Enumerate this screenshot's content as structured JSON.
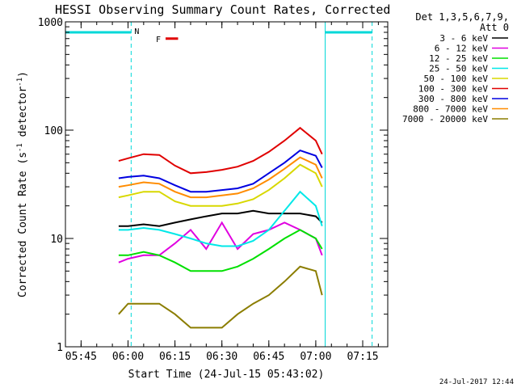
{
  "chart_data": {
    "type": "line",
    "title": "HESSI Observing Summary Count Rates, Corrected",
    "xlabel": "Start Time (24-Jul-15 05:43:02)",
    "ylabel_main": "Corrected Count Rate (s",
    "ylabel_sup1": "-1",
    "ylabel_mid": " detector",
    "ylabel_sup2": "-1",
    "ylabel_end": ")",
    "footer_date": "24-Jul-2017 12:44",
    "y_scale": "log",
    "ylim": [
      1,
      1000
    ],
    "xlim": [
      "05:40",
      "07:23"
    ],
    "x_ticks": [
      "05:45",
      "06:00",
      "06:15",
      "06:30",
      "06:45",
      "07:00",
      "07:15"
    ],
    "y_ticks": [
      "1",
      "10",
      "100",
      "1000"
    ],
    "legend_header": [
      "Det 1,3,5,6,7,9,",
      "Att 0"
    ],
    "legend_position": "right",
    "night_bars": [
      {
        "from": "05:40",
        "to": "06:01",
        "y": 800,
        "marker": "N"
      },
      {
        "from": "07:03",
        "to": "07:18",
        "y": 800,
        "marker": ""
      }
    ],
    "flare_bar": {
      "from": "06:12",
      "to": "06:16",
      "y": 700,
      "marker": "F",
      "color": "#e00000"
    },
    "vlines_solid": [
      "05:40",
      "07:03"
    ],
    "vlines_dashed": [
      "06:01",
      "07:18"
    ],
    "series": [
      {
        "name": "3 - 6 keV",
        "color": "#000000",
        "x": [
          "05:57",
          "06:00",
          "06:05",
          "06:10",
          "06:15",
          "06:20",
          "06:25",
          "06:30",
          "06:35",
          "06:40",
          "06:45",
          "06:50",
          "06:55",
          "07:00",
          "07:02"
        ],
        "y": [
          13,
          13,
          13.5,
          13,
          14,
          15,
          16,
          17,
          17,
          18,
          17,
          17,
          17,
          16,
          14
        ]
      },
      {
        "name": "6 - 12 keV",
        "color": "#e000e0",
        "x": [
          "05:57",
          "06:00",
          "06:05",
          "06:10",
          "06:15",
          "06:20",
          "06:25",
          "06:30",
          "06:35",
          "06:40",
          "06:45",
          "06:50",
          "06:55",
          "07:00",
          "07:02"
        ],
        "y": [
          6,
          6.5,
          7,
          7,
          9,
          12,
          8,
          14,
          8,
          11,
          12,
          14,
          12,
          10,
          7
        ]
      },
      {
        "name": "12 - 25 keV",
        "color": "#00e000",
        "x": [
          "05:57",
          "06:00",
          "06:05",
          "06:10",
          "06:15",
          "06:20",
          "06:25",
          "06:30",
          "06:35",
          "06:40",
          "06:45",
          "06:50",
          "06:55",
          "07:00",
          "07:02"
        ],
        "y": [
          7,
          7,
          7.5,
          7,
          6,
          5,
          5,
          5,
          5.5,
          6.5,
          8,
          10,
          12,
          10,
          8
        ]
      },
      {
        "name": "25 - 50 keV",
        "color": "#00e8e8",
        "x": [
          "05:57",
          "06:00",
          "06:05",
          "06:10",
          "06:15",
          "06:20",
          "06:25",
          "06:30",
          "06:35",
          "06:40",
          "06:45",
          "06:50",
          "06:55",
          "07:00",
          "07:02"
        ],
        "y": [
          12,
          12,
          12.5,
          12,
          11,
          10,
          9,
          8.5,
          8.5,
          9.5,
          12,
          18,
          27,
          20,
          13
        ]
      },
      {
        "name": "50 - 100 keV",
        "color": "#d8d800",
        "x": [
          "05:57",
          "06:00",
          "06:05",
          "06:10",
          "06:15",
          "06:20",
          "06:25",
          "06:30",
          "06:35",
          "06:40",
          "06:45",
          "06:50",
          "06:55",
          "07:00",
          "07:02"
        ],
        "y": [
          24,
          25,
          27,
          27,
          22,
          20,
          20,
          20,
          21,
          23,
          28,
          36,
          48,
          40,
          30
        ]
      },
      {
        "name": "100 - 300 keV",
        "color": "#e00000",
        "x": [
          "05:57",
          "06:00",
          "06:05",
          "06:10",
          "06:15",
          "06:20",
          "06:25",
          "06:30",
          "06:35",
          "06:40",
          "06:45",
          "06:50",
          "06:55",
          "07:00",
          "07:02"
        ],
        "y": [
          52,
          55,
          60,
          59,
          47,
          40,
          41,
          43,
          46,
          52,
          63,
          80,
          105,
          80,
          60
        ]
      },
      {
        "name": "300 - 800 keV",
        "color": "#0000e0",
        "x": [
          "05:57",
          "06:00",
          "06:05",
          "06:10",
          "06:15",
          "06:20",
          "06:25",
          "06:30",
          "06:35",
          "06:40",
          "06:45",
          "06:50",
          "06:55",
          "07:00",
          "07:02"
        ],
        "y": [
          36,
          37,
          38,
          36,
          31,
          27,
          27,
          28,
          29,
          32,
          40,
          50,
          65,
          58,
          45
        ]
      },
      {
        "name": "800 - 7000 keV",
        "color": "#ff8c00",
        "x": [
          "05:57",
          "06:00",
          "06:05",
          "06:10",
          "06:15",
          "06:20",
          "06:25",
          "06:30",
          "06:35",
          "06:40",
          "06:45",
          "06:50",
          "06:55",
          "07:00",
          "07:02"
        ],
        "y": [
          30,
          31,
          33,
          32,
          27,
          24,
          24,
          25,
          26,
          29,
          35,
          44,
          56,
          48,
          36
        ]
      },
      {
        "name": "7000 - 20000 keV",
        "color": "#8b7d00",
        "x": [
          "05:57",
          "06:00",
          "06:05",
          "06:10",
          "06:15",
          "06:20",
          "06:25",
          "06:30",
          "06:35",
          "06:40",
          "06:45",
          "06:50",
          "06:55",
          "07:00",
          "07:02"
        ],
        "y": [
          2,
          2.5,
          2.5,
          2.5,
          2,
          1.5,
          1.5,
          1.5,
          2,
          2.5,
          3,
          4,
          5.5,
          5,
          3
        ]
      }
    ]
  }
}
